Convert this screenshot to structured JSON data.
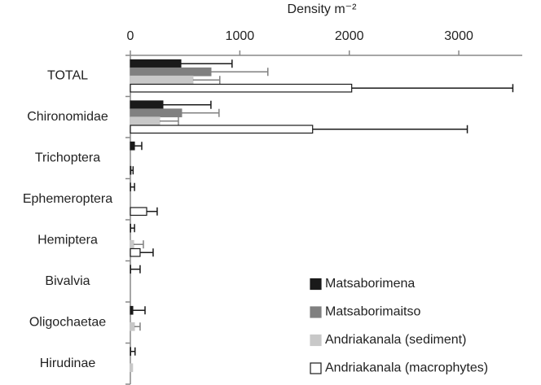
{
  "chart_data": {
    "type": "bar",
    "orientation": "horizontal",
    "x_label": "Density m⁻²",
    "categories": [
      "TOTAL",
      "Chironomidae",
      "Trichoptera",
      "Ephemeroptera",
      "Hemiptera",
      "Bivalvia",
      "Oligochaetae",
      "Hirudinae"
    ],
    "series": [
      {
        "name": "Matsaborimena",
        "color": "#1a1a1a",
        "error_color": "#1a1a1a",
        "values": [
          461,
          297,
          37,
          2,
          3,
          3,
          22,
          3
        ],
        "errors": [
          468,
          439,
          67,
          36,
          35,
          86,
          112,
          40
        ]
      },
      {
        "name": "Matsaborimaitso",
        "color": "#808080",
        "error_color": "#808080",
        "values": [
          736,
          468,
          0,
          0,
          0,
          0,
          0,
          0
        ],
        "errors": [
          520,
          342,
          null,
          null,
          null,
          null,
          null,
          null
        ]
      },
      {
        "name": "Andriakanala (sediment)",
        "color": "#c8c8c8",
        "error_color": "#808080",
        "values": [
          572,
          268,
          0,
          0,
          30,
          0,
          37,
          20
        ],
        "errors": [
          245,
          171,
          null,
          null,
          89,
          null,
          52,
          null
        ]
      },
      {
        "name": "Andriakanala (macrophytes)",
        "color": "#ffffff",
        "error_color": "#1a1a1a",
        "values": [
          2022,
          1665,
          5,
          149,
          89,
          0,
          0,
          0
        ],
        "errors": [
          1472,
          1413,
          20,
          96,
          119,
          null,
          null,
          null
        ]
      }
    ],
    "xlim": [
      0,
      3580
    ],
    "xticks": [
      0,
      1000,
      2000,
      3000
    ]
  }
}
